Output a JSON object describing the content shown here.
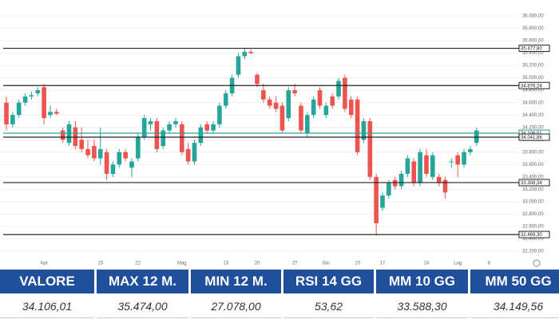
{
  "chart_data": {
    "type": "candlestick",
    "colors": {
      "up": "#26a69a",
      "down": "#ef5350"
    },
    "grid": true,
    "ylim": [
      32200,
      36000
    ],
    "yticks": [
      {
        "value": 36000,
        "label": "36.000,00"
      },
      {
        "value": 35800,
        "label": "35.800,00"
      },
      {
        "value": 35600,
        "label": "35.600,00"
      },
      {
        "value": 35400,
        "label": "35.400,00"
      },
      {
        "value": 35200,
        "label": "35.200,00"
      },
      {
        "value": 35000,
        "label": "35.000,00"
      },
      {
        "value": 34800,
        "label": "34.800,00"
      },
      {
        "value": 34600,
        "label": "34.600,00"
      },
      {
        "value": 34400,
        "label": "34.400,00"
      },
      {
        "value": 34200,
        "label": "34.200,00"
      },
      {
        "value": 34000,
        "label": "34.000,00"
      },
      {
        "value": 33800,
        "label": "33.800,00"
      },
      {
        "value": 33600,
        "label": "33.600,00"
      },
      {
        "value": 33400,
        "label": "33.400,00"
      },
      {
        "value": 33200,
        "label": "33.200,00"
      },
      {
        "value": 33000,
        "label": "33.000,00"
      },
      {
        "value": 32800,
        "label": "32.800,00"
      },
      {
        "value": 32600,
        "label": "32.600,00"
      },
      {
        "value": 32400,
        "label": "32.400,00"
      },
      {
        "value": 32200,
        "label": "32.200,00"
      }
    ],
    "levels": [
      {
        "value": 35477.8,
        "label": "35.477,80"
      },
      {
        "value": 34876.24,
        "label": "34.876,24"
      },
      {
        "value": 34041.86,
        "label": "34.041,86"
      },
      {
        "value": 33308.34,
        "label": "33.308,34"
      },
      {
        "value": 32469.3,
        "label": "32.469,30"
      }
    ],
    "last_price": {
      "value": 34106.01,
      "label": "34.106,01",
      "color": "#26a69a"
    },
    "categories": [
      null,
      null,
      null,
      null,
      null,
      null,
      "Apr",
      null,
      null,
      null,
      null,
      null,
      null,
      null,
      null,
      "15",
      null,
      null,
      null,
      null,
      null,
      "22",
      null,
      null,
      null,
      null,
      null,
      null,
      "Mag",
      null,
      null,
      null,
      null,
      null,
      null,
      "13",
      null,
      null,
      null,
      null,
      "20",
      null,
      null,
      null,
      null,
      null,
      "27",
      null,
      null,
      null,
      null,
      "Giu",
      null,
      null,
      null,
      null,
      "10",
      null,
      null,
      null,
      "17",
      null,
      null,
      null,
      null,
      null,
      null,
      "24",
      null,
      null,
      null,
      null,
      "Lug",
      null,
      null,
      null,
      null,
      "8"
    ],
    "open": [
      34600,
      34250,
      34400,
      34600,
      34700,
      34750,
      34850,
      34400,
      34450,
      34150,
      33950,
      34200,
      34000,
      33850,
      33900,
      33700,
      33800,
      33450,
      33600,
      33800,
      33550,
      33700,
      34050,
      34250,
      34300,
      33900,
      34150,
      34250,
      34250,
      33850,
      33650,
      33950,
      34250,
      34150,
      34250,
      34550,
      34750,
      35050,
      35350,
      35420,
      35050,
      34800,
      34650,
      34600,
      34550,
      34350,
      34800,
      34550,
      34100,
      34400,
      34800,
      34400,
      34700,
      34700,
      35000,
      34650,
      34650,
      34000,
      34300,
      33400,
      32900,
      33100,
      33350,
      33250,
      33450,
      33650,
      33300,
      33750,
      33400,
      33400,
      33350,
      33650,
      33750,
      33600,
      33800,
      33950,
      null,
      null
    ],
    "high": [
      34700,
      34450,
      34650,
      34750,
      34780,
      34850,
      34900,
      34550,
      34500,
      34200,
      34300,
      34300,
      34200,
      34000,
      34000,
      34200,
      33850,
      33650,
      33850,
      33850,
      33700,
      34100,
      34400,
      34350,
      34350,
      34200,
      34300,
      34350,
      34300,
      33950,
      34000,
      34250,
      34300,
      34300,
      34600,
      34800,
      35050,
      35400,
      35480,
      35460,
      35080,
      34900,
      34700,
      34700,
      34600,
      34850,
      34900,
      34600,
      34450,
      34700,
      34850,
      34600,
      34750,
      35000,
      35050,
      34700,
      34700,
      34350,
      34350,
      33450,
      33150,
      33350,
      33400,
      33500,
      33750,
      33700,
      33850,
      33850,
      33800,
      33450,
      33400,
      33700,
      33800,
      33850,
      33900,
      34200,
      null,
      null
    ],
    "low": [
      34150,
      34200,
      34350,
      34550,
      34650,
      34700,
      34250,
      34350,
      34400,
      33950,
      33900,
      33850,
      33800,
      33700,
      33650,
      33600,
      33350,
      33400,
      33550,
      33650,
      33400,
      33650,
      34000,
      34150,
      33800,
      33850,
      34100,
      34200,
      33750,
      33600,
      33600,
      33900,
      34100,
      34100,
      34200,
      34500,
      34700,
      35000,
      35300,
      35380,
      34850,
      34600,
      34500,
      34450,
      34100,
      34300,
      34700,
      34100,
      34050,
      34350,
      34500,
      34350,
      34500,
      34650,
      34450,
      34350,
      33750,
      33950,
      33350,
      32450,
      32850,
      33050,
      33200,
      33200,
      33400,
      33250,
      33250,
      33400,
      33350,
      33250,
      33050,
      33550,
      33400,
      33550,
      33750,
      33900,
      null,
      null
    ],
    "close": [
      34250,
      34400,
      34600,
      34700,
      34720,
      34800,
      34350,
      34450,
      34420,
      34000,
      34250,
      33900,
      33850,
      33750,
      33700,
      33850,
      33450,
      33600,
      33800,
      33700,
      33650,
      34050,
      34350,
      34300,
      33850,
      34150,
      34250,
      34300,
      33800,
      33650,
      33950,
      34200,
      34150,
      34250,
      34550,
      34750,
      35000,
      35350,
      35420,
      35400,
      34900,
      34650,
      34550,
      34500,
      34150,
      34800,
      34750,
      34150,
      34400,
      34650,
      34550,
      34550,
      34550,
      34950,
      34500,
      34400,
      33800,
      34300,
      33400,
      32650,
      33100,
      33300,
      33250,
      33450,
      33700,
      33300,
      33800,
      33450,
      33750,
      33300,
      33150,
      33650,
      33600,
      33800,
      33850,
      34150,
      null,
      null
    ]
  },
  "table": {
    "headers": [
      "VALORE",
      "MAX 12 M.",
      "MIN 12 M.",
      "RSI 14 GG",
      "MM 10 GG",
      "MM 50 GG"
    ],
    "values": [
      "34.106,01",
      "35.474,00",
      "27.078,00",
      "53,62",
      "33.588,30",
      "34.149,56"
    ]
  }
}
